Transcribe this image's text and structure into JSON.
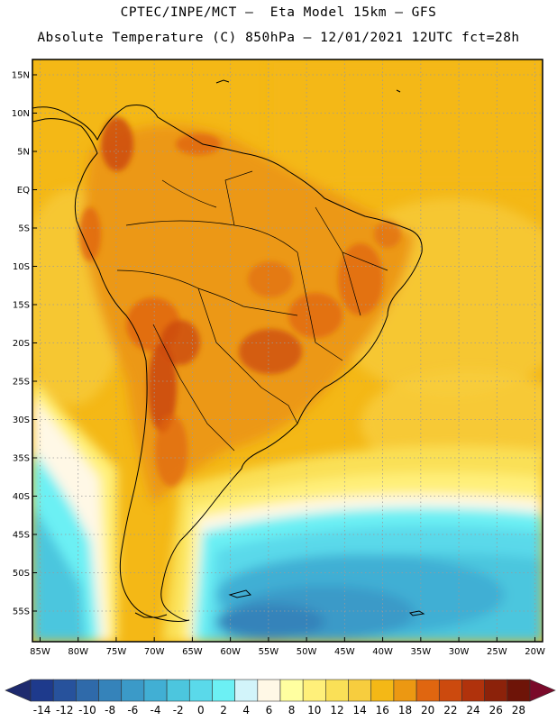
{
  "header": {
    "line1": "CPTEC/INPE/MCT –  Eta Model 15km – GFS",
    "line2": "Absolute Temperature (C) 850hPa – 12/01/2021 12UTC fct=28h"
  },
  "map": {
    "lat_labels": [
      "15N",
      "10N",
      "5N",
      "EQ",
      "5S",
      "10S",
      "15S",
      "20S",
      "25S",
      "30S",
      "35S",
      "40S",
      "45S",
      "50S",
      "55S"
    ],
    "lon_labels": [
      "85W",
      "80W",
      "75W",
      "70W",
      "65W",
      "60W",
      "55W",
      "50W",
      "45W",
      "40W",
      "35W",
      "30W",
      "25W",
      "20W"
    ],
    "lon_range": [
      -86,
      -19
    ],
    "lat_range": [
      17,
      -59
    ]
  },
  "colorbar": {
    "labels": [
      "-14",
      "-12",
      "-10",
      "-8",
      "-6",
      "-4",
      "-2",
      "0",
      "2",
      "4",
      "6",
      "8",
      "10",
      "12",
      "14",
      "16",
      "18",
      "20",
      "22",
      "24",
      "26",
      "28"
    ],
    "colors": [
      "#1e3a8c",
      "#27529c",
      "#2f6aaa",
      "#3583ba",
      "#3b9ac8",
      "#41afd4",
      "#4cc6de",
      "#5ad9ea",
      "#6cf0f4",
      "#d2f4fa",
      "#fff8e6",
      "#ffffa0",
      "#fff07a",
      "#fae057",
      "#f7cd3e",
      "#f4b816",
      "#ec9812",
      "#e06610",
      "#cc4a0e",
      "#b0320c",
      "#8c220a",
      "#6e1408"
    ],
    "low_color": "#1e2a6e",
    "high_color": "#7a0a2a"
  }
}
